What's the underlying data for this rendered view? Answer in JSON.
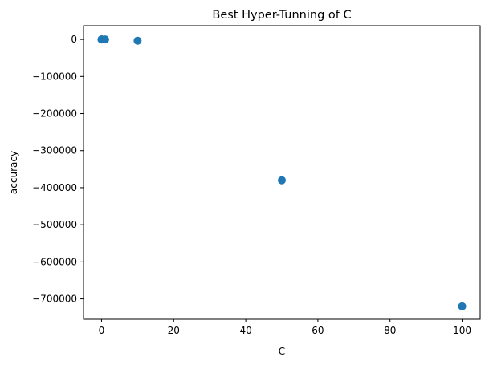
{
  "chart_data": {
    "type": "scatter",
    "title": "Best Hyper-Tunning of C",
    "xlabel": "C",
    "ylabel": "accuracy",
    "xlim": [
      -5,
      105
    ],
    "ylim": [
      -755000,
      37000
    ],
    "x_ticks": [
      0,
      20,
      40,
      60,
      80,
      100
    ],
    "x_tick_labels": [
      "0",
      "20",
      "40",
      "60",
      "80",
      "100"
    ],
    "y_ticks": [
      0,
      -100000,
      -200000,
      -300000,
      -400000,
      -500000,
      -600000,
      -700000
    ],
    "y_tick_labels": [
      "0",
      "−100000",
      "−200000",
      "−300000",
      "−400000",
      "−500000",
      "−600000",
      "−700000"
    ],
    "grid": false,
    "marker_color": "#1f77b4",
    "points": [
      {
        "x": 0.001,
        "y": 0
      },
      {
        "x": 0.01,
        "y": 0
      },
      {
        "x": 0.1,
        "y": 0
      },
      {
        "x": 1,
        "y": -100
      },
      {
        "x": 10,
        "y": -3500
      },
      {
        "x": 50,
        "y": -380000
      },
      {
        "x": 100,
        "y": -720000
      }
    ]
  }
}
